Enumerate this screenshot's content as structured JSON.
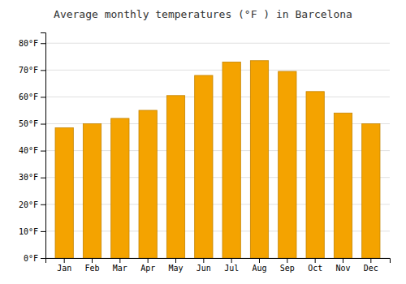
{
  "chart_data": {
    "type": "bar",
    "title": "Average monthly temperatures (°F ) in Barcelona",
    "categories": [
      "Jan",
      "Feb",
      "Mar",
      "Apr",
      "May",
      "Jun",
      "Jul",
      "Aug",
      "Sep",
      "Oct",
      "Nov",
      "Dec"
    ],
    "values": [
      48.5,
      50.0,
      52.0,
      55.0,
      60.5,
      68.0,
      73.0,
      73.5,
      69.5,
      62.0,
      54.0,
      50.0
    ],
    "color": "#F4A300",
    "ylim": [
      0,
      84
    ],
    "yticks": [
      {
        "value": 0,
        "label": "0°F"
      },
      {
        "value": 10,
        "label": "10°F"
      },
      {
        "value": 20,
        "label": "20°F"
      },
      {
        "value": 30,
        "label": "30°F"
      },
      {
        "value": 40,
        "label": "40°F"
      },
      {
        "value": 50,
        "label": "50°F"
      },
      {
        "value": 60,
        "label": "60°F"
      },
      {
        "value": 70,
        "label": "70°F"
      },
      {
        "value": 80,
        "label": "80°F"
      }
    ],
    "grid": true
  }
}
